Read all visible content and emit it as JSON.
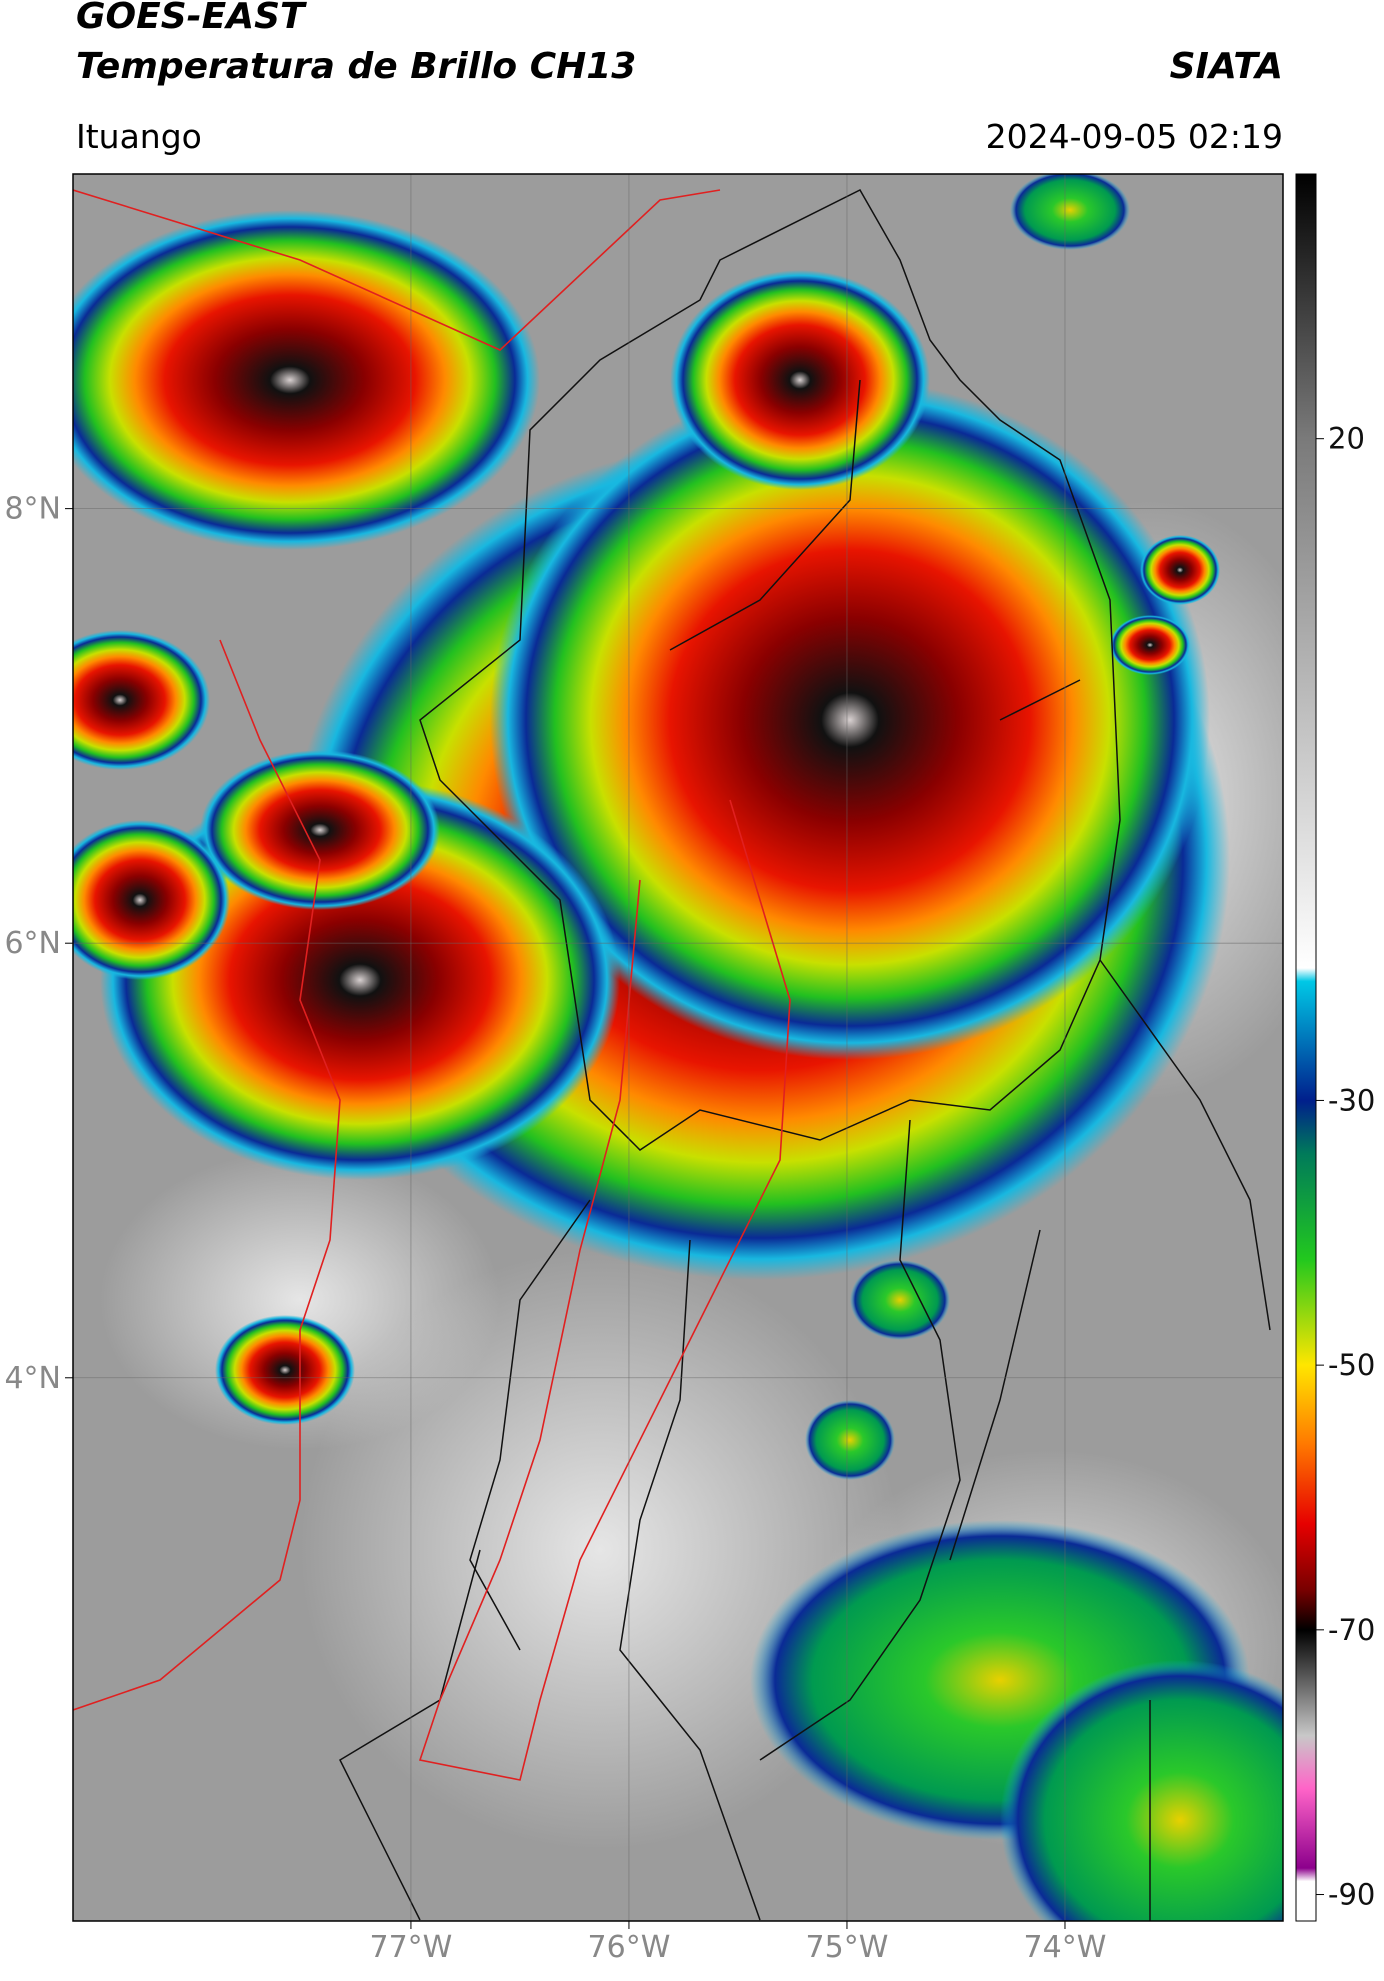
{
  "header": {
    "line1": "GOES-EAST",
    "title": "Temperatura de Brillo CH13",
    "source": "SIATA",
    "location": "Ituango",
    "datetime": "2024-09-05 02:19"
  },
  "map": {
    "xlim": [
      -78.55,
      -73.0
    ],
    "ylim": [
      1.5,
      9.54
    ],
    "xticks": [
      {
        "value": -77,
        "label": "77°W"
      },
      {
        "value": -76,
        "label": "76°W"
      },
      {
        "value": -75,
        "label": "75°W"
      },
      {
        "value": -74,
        "label": "74°W"
      }
    ],
    "yticks": [
      {
        "value": 4,
        "label": "4°N"
      },
      {
        "value": 6,
        "label": "6°N"
      },
      {
        "value": 8,
        "label": "8°N"
      }
    ],
    "grid": true
  },
  "colorbar": {
    "clim": [
      -92,
      40
    ],
    "ticks": [
      20,
      -30,
      -50,
      -70,
      -90
    ],
    "colormap": [
      {
        "value": 40,
        "color": "#000000"
      },
      {
        "value": 20,
        "color": "#7a7a7a"
      },
      {
        "value": -20,
        "color": "#ffffff"
      },
      {
        "value": -21,
        "color": "#00c8e6"
      },
      {
        "value": -30,
        "color": "#001f8c"
      },
      {
        "value": -34,
        "color": "#007a5a"
      },
      {
        "value": -42,
        "color": "#22c81e"
      },
      {
        "value": -50,
        "color": "#ffe600"
      },
      {
        "value": -56,
        "color": "#ff7800"
      },
      {
        "value": -62,
        "color": "#e60000"
      },
      {
        "value": -67,
        "color": "#780000"
      },
      {
        "value": -70,
        "color": "#000000"
      },
      {
        "value": -78,
        "color": "#c8c8c8"
      },
      {
        "value": -82,
        "color": "#ff64c8"
      },
      {
        "value": -88,
        "color": "#8c008c"
      },
      {
        "value": -89,
        "color": "#ffffff"
      },
      {
        "value": -92,
        "color": "#ffffff"
      }
    ]
  }
}
